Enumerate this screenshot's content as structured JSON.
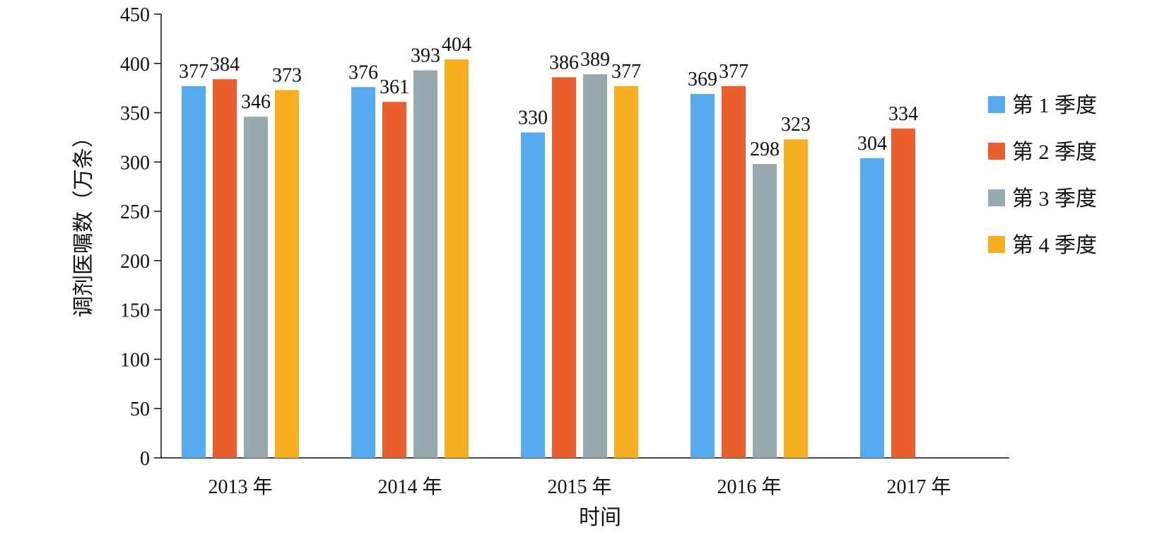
{
  "chart_data": {
    "type": "bar",
    "categories": [
      "2013 年",
      "2014 年",
      "2015 年",
      "2016 年",
      "2017 年"
    ],
    "series": [
      {
        "name": "第 1 季度",
        "color": "#55AAF0",
        "values": [
          377,
          376,
          330,
          369,
          304
        ]
      },
      {
        "name": "第 2 季度",
        "color": "#EB5F2D",
        "values": [
          384,
          361,
          386,
          377,
          334
        ]
      },
      {
        "name": "第 3 季度",
        "color": "#98AAB0",
        "values": [
          346,
          393,
          389,
          298,
          null
        ]
      },
      {
        "name": "第 4 季度",
        "color": "#F7AE1F",
        "values": [
          373,
          404,
          377,
          323,
          null
        ]
      }
    ],
    "xlabel": "时间",
    "ylabel": "调剂医嘱数（万条）",
    "ylim": [
      0,
      450
    ],
    "yticks": [
      "0",
      "50",
      "100",
      "150",
      "200",
      "250",
      "300",
      "350",
      "400",
      "450"
    ],
    "legend_position": "right",
    "grid": false
  }
}
